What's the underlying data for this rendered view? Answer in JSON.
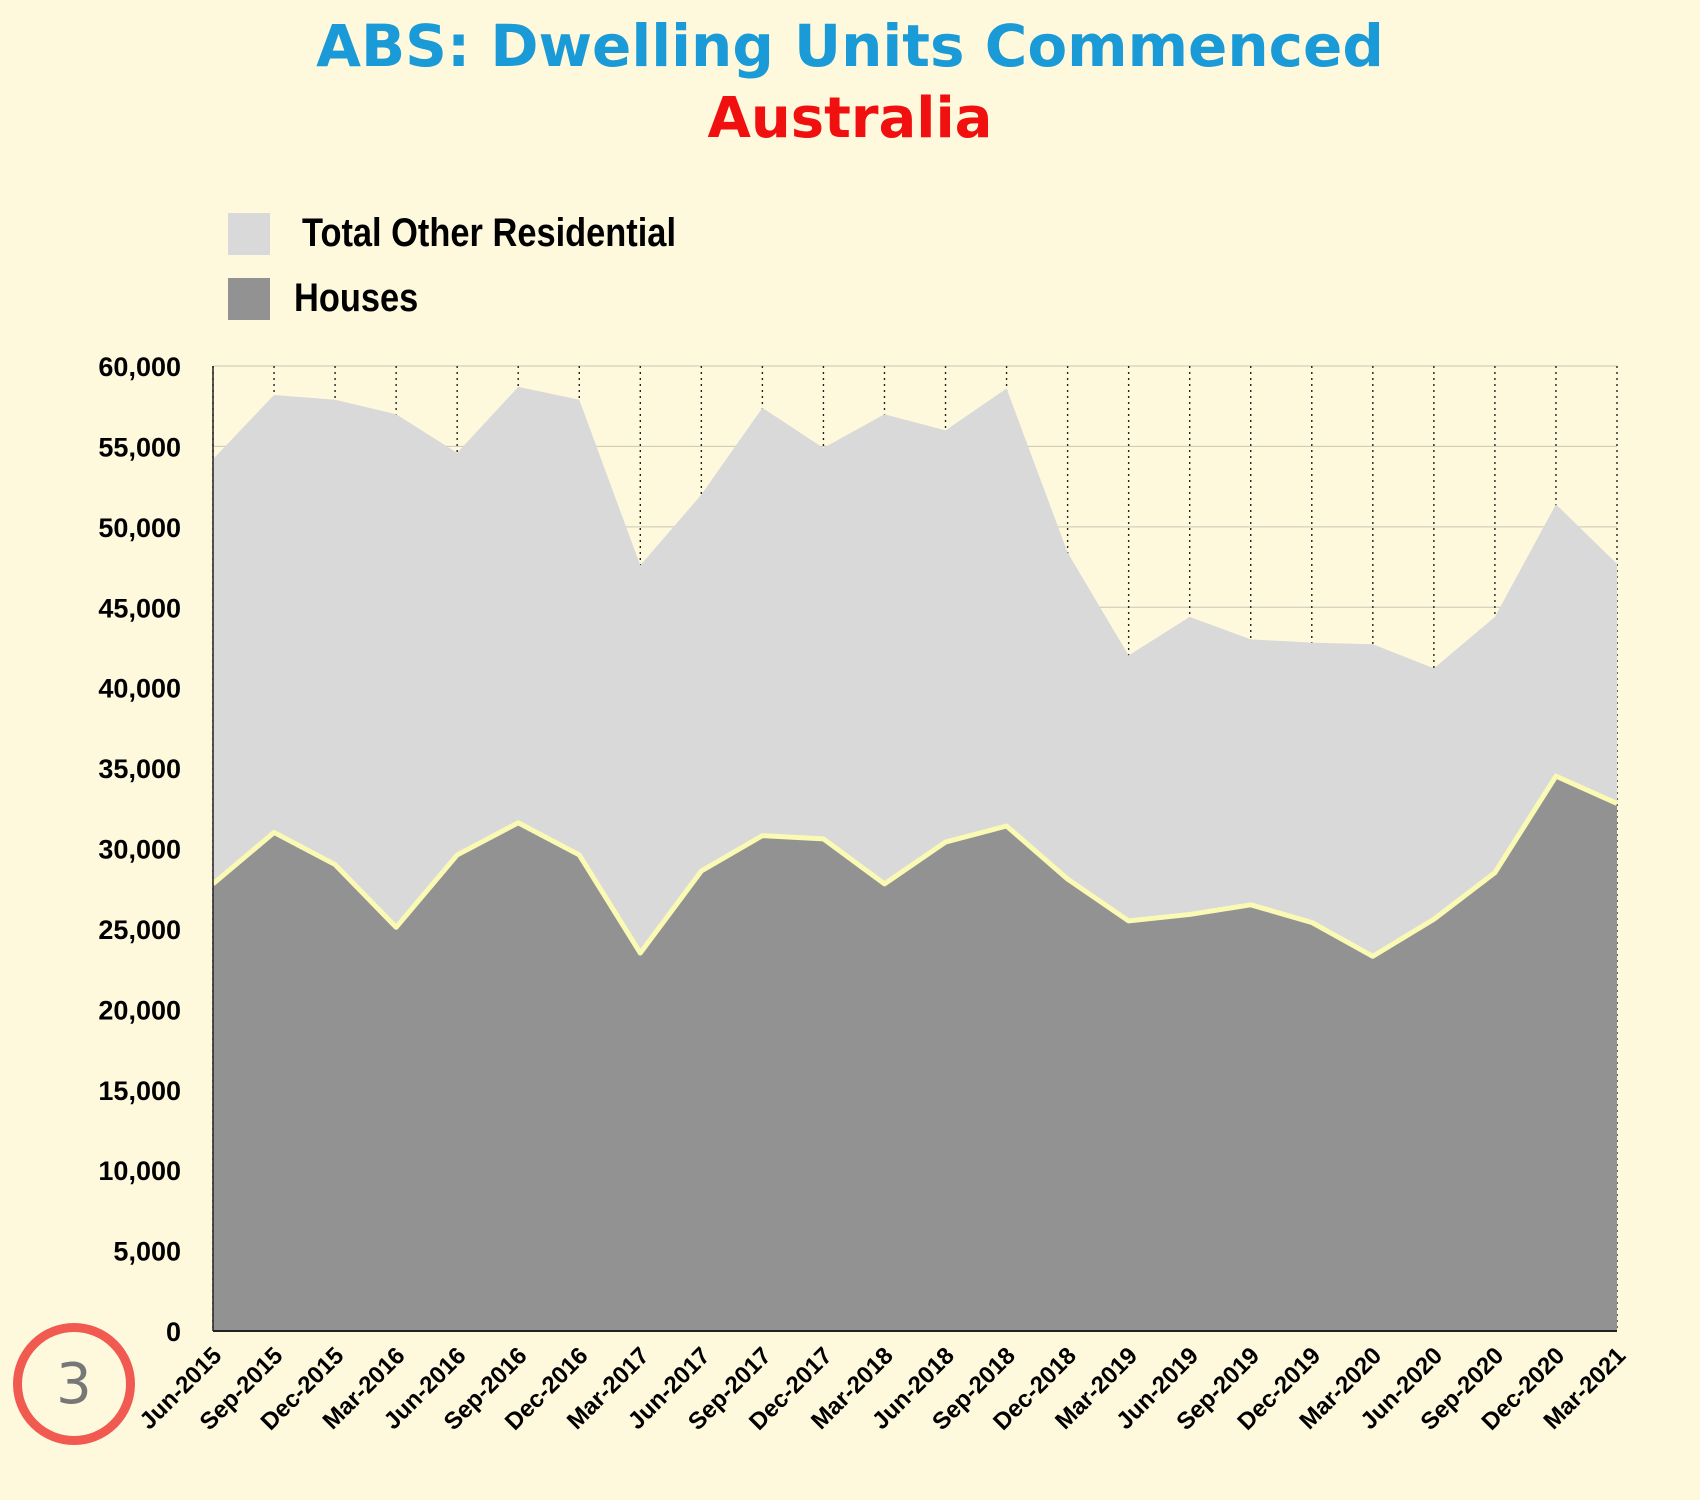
{
  "header": {
    "title": "ABS: Dwelling Units Commenced",
    "subtitle": "Australia"
  },
  "legend": {
    "other_label": "Total Other Residential",
    "houses_label": "Houses"
  },
  "badge": {
    "number": "3"
  },
  "colors": {
    "title": "#1a9ad6",
    "subtitle": "#f01010",
    "background": "#fef8dc",
    "total_other": "#d9d9d9",
    "houses": "#929292",
    "houses_line": "#fafab4"
  },
  "chart_data": {
    "type": "area",
    "stacked": true,
    "title": "ABS: Dwelling Units Commenced",
    "subtitle": "Australia",
    "categories": [
      "Jun-2015",
      "Sep-2015",
      "Dec-2015",
      "Mar-2016",
      "Jun-2016",
      "Sep-2016",
      "Dec-2016",
      "Mar-2017",
      "Jun-2017",
      "Sep-2017",
      "Dec-2017",
      "Mar-2018",
      "Jun-2018",
      "Sep-2018",
      "Dec-2018",
      "Mar-2019",
      "Jun-2019",
      "Sep-2019",
      "Dec-2019",
      "Mar-2020",
      "Jun-2020",
      "Sep-2020",
      "Dec-2020",
      "Mar-2021"
    ],
    "series": [
      {
        "name": "Houses",
        "values": [
          27800,
          31000,
          29000,
          25100,
          29600,
          31600,
          29600,
          23500,
          28600,
          30800,
          30600,
          27800,
          30400,
          31400,
          28100,
          25500,
          25900,
          26500,
          25400,
          23300,
          25600,
          28500,
          34500,
          32800
        ]
      },
      {
        "name": "Total Other Residential",
        "values": [
          26400,
          27200,
          28900,
          31900,
          25000,
          27100,
          28300,
          24100,
          23400,
          26600,
          24300,
          29200,
          25600,
          27200,
          20300,
          16500,
          18500,
          16500,
          17400,
          19400,
          15600,
          15900,
          16900,
          14900
        ]
      }
    ],
    "ylim": [
      0,
      60000
    ],
    "yticks": [
      0,
      5000,
      10000,
      15000,
      20000,
      25000,
      30000,
      35000,
      40000,
      45000,
      50000,
      55000,
      60000
    ],
    "ytick_labels": [
      "0",
      "5,000",
      "10,000",
      "15,000",
      "20,000",
      "25,000",
      "30,000",
      "35,000",
      "40,000",
      "45,000",
      "50,000",
      "55,000",
      "60,000"
    ],
    "xlabel": "",
    "ylabel": "",
    "grid": true,
    "legend_position": "top-left"
  }
}
